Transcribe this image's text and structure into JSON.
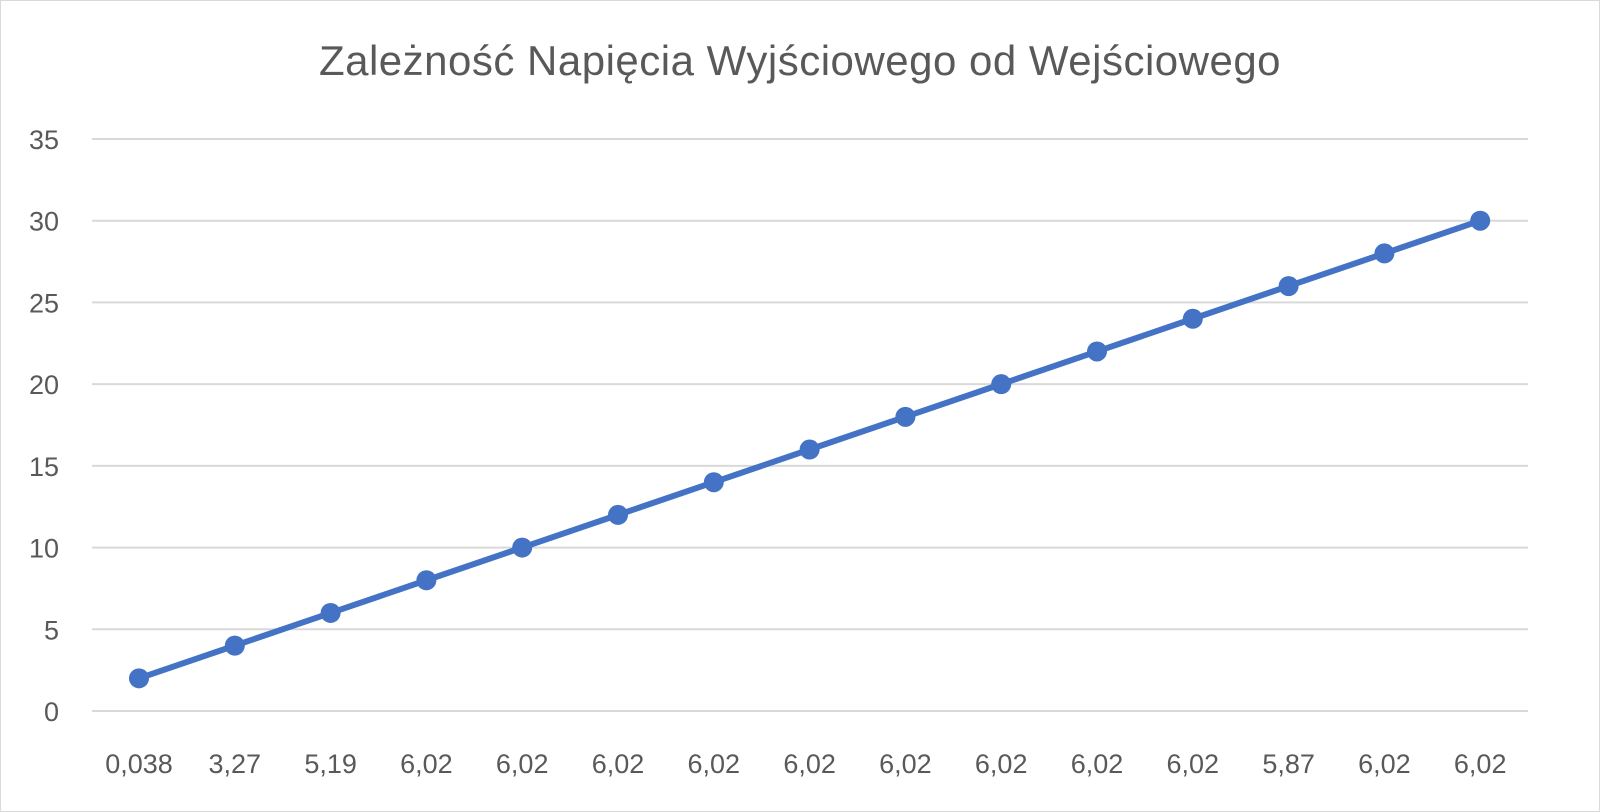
{
  "chart_data": {
    "type": "line",
    "title": "Zależność Napięcia Wyjściowego od Wejściowego",
    "xlabel": "",
    "ylabel": "",
    "categories": [
      "0,038",
      "3,27",
      "5,19",
      "6,02",
      "6,02",
      "6,02",
      "6,02",
      "6,02",
      "6,02",
      "6,02",
      "6,02",
      "6,02",
      "5,87",
      "6,02",
      "6,02"
    ],
    "series": [
      {
        "values": [
          2,
          4,
          6,
          8,
          10,
          12,
          14,
          16,
          18,
          20,
          22,
          24,
          26,
          28,
          30
        ]
      }
    ],
    "ylim": [
      0,
      35
    ],
    "yticks": [
      "0",
      "5",
      "10",
      "15",
      "20",
      "25",
      "30",
      "35"
    ],
    "grid": true,
    "legend": "none",
    "markers": true,
    "colors": {
      "series": "#4472C4",
      "grid": "#d9d9d9",
      "text": "#595959"
    }
  }
}
